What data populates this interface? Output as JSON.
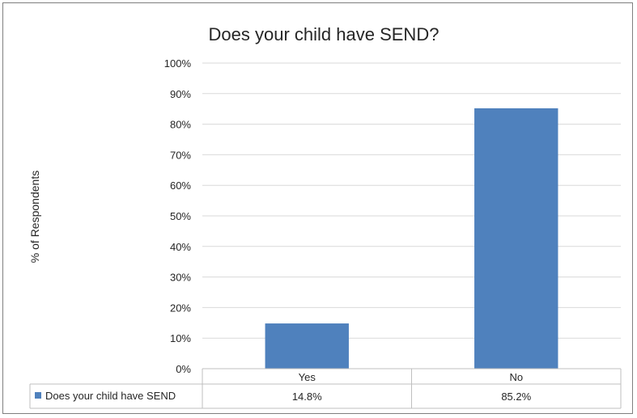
{
  "chart_data": {
    "type": "bar",
    "title": "Does your child have SEND?",
    "ylabel": "% of Respondents",
    "xlabel": "",
    "categories": [
      "Yes",
      "No"
    ],
    "series": [
      {
        "name": "Does your child have SEND",
        "values": [
          14.8,
          85.2
        ],
        "labels": [
          "14.8%",
          "85.2%"
        ],
        "color": "#4f81bd"
      }
    ],
    "ylim": [
      0,
      100
    ],
    "yticks": [
      "0%",
      "10%",
      "20%",
      "30%",
      "40%",
      "50%",
      "60%",
      "70%",
      "80%",
      "90%",
      "100%"
    ],
    "grid": true,
    "legend": "data-table"
  }
}
